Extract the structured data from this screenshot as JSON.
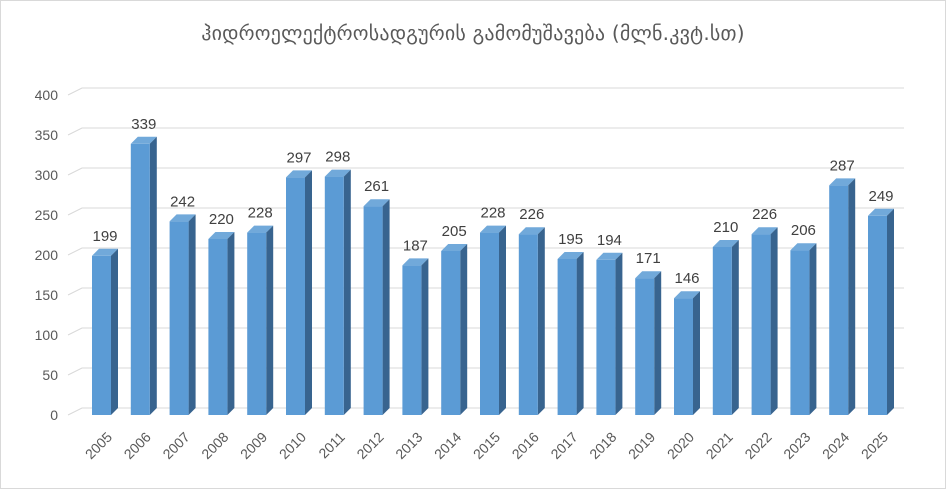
{
  "chart_data": {
    "type": "bar",
    "title": "ჰიდროელექტროსადგურის გამომუშავება (მლნ.კვტ.სთ)",
    "categories": [
      "2005",
      "2006",
      "2007",
      "2008",
      "2009",
      "2010",
      "2011",
      "2012",
      "2013",
      "2014",
      "2015",
      "2016",
      "2017",
      "2018",
      "2019",
      "2020",
      "2021",
      "2022",
      "2023",
      "2024",
      "2025"
    ],
    "values": [
      199,
      339,
      242,
      220,
      228,
      297,
      298,
      261,
      187,
      205,
      228,
      226,
      195,
      194,
      171,
      146,
      210,
      226,
      206,
      287,
      249
    ],
    "xlabel": "",
    "ylabel": "",
    "ylim": [
      0,
      400
    ],
    "ytick_step": 50,
    "yticks": [
      0,
      50,
      100,
      150,
      200,
      250,
      300,
      350,
      400
    ],
    "grid": true,
    "legend": null,
    "data_labels": true,
    "x_tick_rotation": -45,
    "effect": "3d-column",
    "style": {
      "bar_front": "#5B9BD5",
      "bar_side": "#38648F",
      "bar_top": "#71A9DA",
      "gridline": "#D9D9D9",
      "axis_text": "#595959",
      "data_label_color": "#404040",
      "title_color": "#595959",
      "background": "#FFFFFF",
      "border": "#D9D9D9"
    }
  }
}
